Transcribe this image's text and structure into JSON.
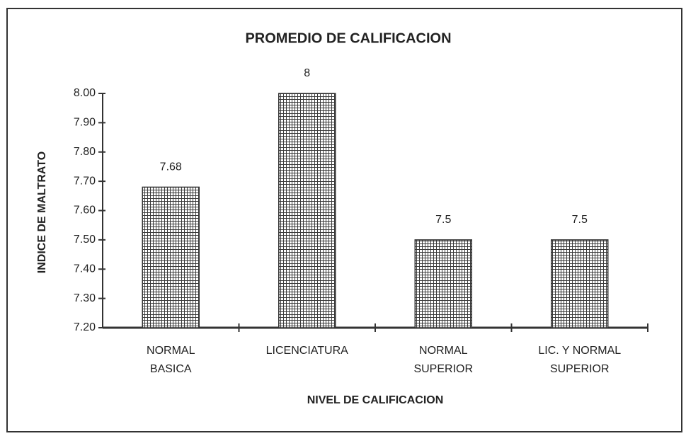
{
  "chart_data": {
    "type": "bar",
    "title": "PROMEDIO DE CALIFICACION",
    "x_label": "NIVEL DE CALIFICACION",
    "y_label": "INDICE DE MALTRATO",
    "categories": [
      "NORMAL\nBASICA",
      "LICENCIATURA",
      "NORMAL\nSUPERIOR",
      "LIC. Y NORMAL\nSUPERIOR"
    ],
    "values": [
      7.68,
      8,
      7.5,
      7.5
    ],
    "color": "#3a3a3a",
    "ylim": [
      7.2,
      8.0
    ],
    "yticks": [
      {
        "value": 7.2,
        "label": "7.20"
      },
      {
        "value": 7.3,
        "label": "7.30"
      },
      {
        "value": 7.4,
        "label": "7.40"
      },
      {
        "value": 7.5,
        "label": "7.50"
      },
      {
        "value": 7.6,
        "label": "7.60"
      },
      {
        "value": 7.7,
        "label": "7.70"
      },
      {
        "value": 7.8,
        "label": "7.80"
      },
      {
        "value": 7.9,
        "label": "7.90"
      },
      {
        "value": 8.0,
        "label": "8.00"
      }
    ]
  }
}
